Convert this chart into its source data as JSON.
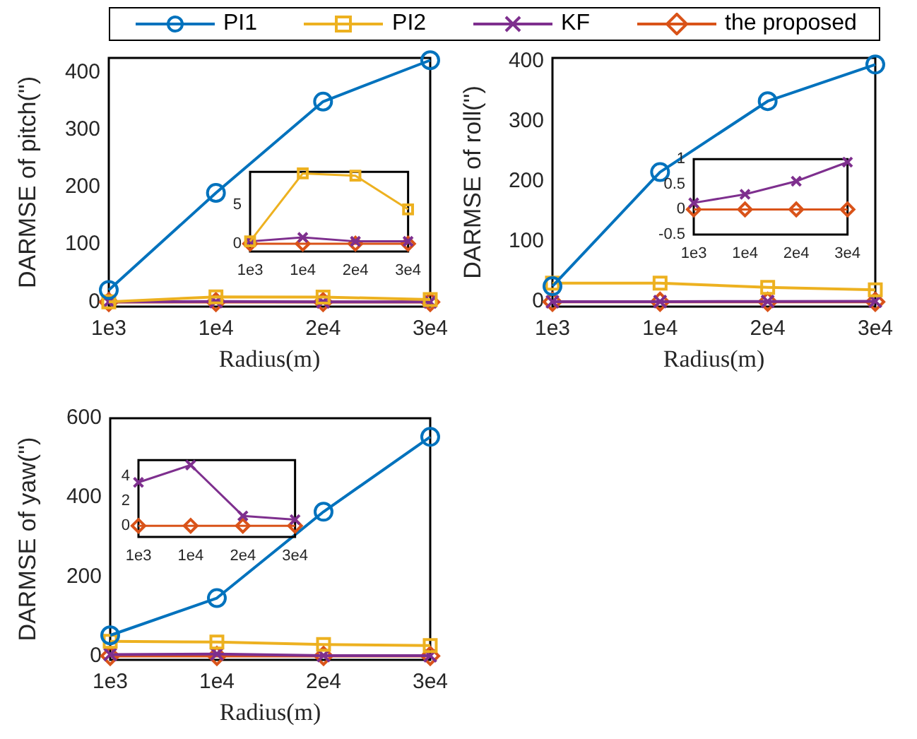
{
  "chart_data": [
    {
      "type": "line",
      "xlabel": "Radius(m)",
      "ylabel": "DARMSE of pitch('')",
      "categories": [
        "1e3",
        "1e4",
        "2e4",
        "3e4"
      ],
      "ylim": [
        -8,
        425
      ],
      "yticks": [
        0,
        100,
        200,
        300,
        400
      ],
      "legend": "top",
      "series": [
        {
          "name": "PI1",
          "color": "#0072bd",
          "marker": "circle",
          "values": [
            21,
            190,
            349,
            421
          ]
        },
        {
          "name": "PI2",
          "color": "#edb120",
          "marker": "square",
          "values": [
            0.3,
            9,
            8.7,
            4.4
          ]
        },
        {
          "name": "KF",
          "color": "#7e2f8e",
          "marker": "cross",
          "values": [
            0.3,
            0.8,
            0.3,
            0.3
          ]
        },
        {
          "name": "the proposed",
          "color": "#d95319",
          "marker": "diamond",
          "values": [
            0,
            0,
            0,
            0
          ]
        }
      ]
    },
    {
      "type": "line",
      "categories": [
        "1e3",
        "1e4",
        "2e4",
        "3e4"
      ],
      "ylim": [
        -1,
        9.2
      ],
      "yticks": [
        0,
        5
      ],
      "series": [
        {
          "color": "#edb120",
          "marker": "square",
          "values": [
            0.3,
            9,
            8.7,
            4.4
          ]
        },
        {
          "color": "#7e2f8e",
          "marker": "cross",
          "values": [
            0.3,
            0.8,
            0.3,
            0.3
          ]
        },
        {
          "color": "#d95319",
          "marker": "diamond",
          "values": [
            0,
            0,
            0,
            0
          ]
        }
      ]
    },
    {
      "type": "line",
      "xlabel": "Radius(m)",
      "ylabel": "DARMSE of roll('')",
      "categories": [
        "1e3",
        "1e4",
        "2e4",
        "3e4"
      ],
      "ylim": [
        -8,
        406
      ],
      "yticks": [
        0,
        100,
        200,
        300,
        400
      ],
      "series": [
        {
          "color": "#0072bd",
          "marker": "circle",
          "values": [
            26,
            216,
            334,
            395
          ]
        },
        {
          "color": "#edb120",
          "marker": "square",
          "values": [
            31,
            31,
            24,
            20
          ]
        },
        {
          "color": "#7e2f8e",
          "marker": "cross",
          "values": [
            0.13,
            0.3,
            0.56,
            0.94
          ]
        },
        {
          "color": "#d95319",
          "marker": "diamond",
          "values": [
            0,
            0,
            0,
            0
          ]
        }
      ]
    },
    {
      "type": "line",
      "categories": [
        "1e3",
        "1e4",
        "2e4",
        "3e4"
      ],
      "ylim": [
        -0.5,
        1
      ],
      "yticks": [
        -0.5,
        0,
        0.5,
        1
      ],
      "series": [
        {
          "color": "#7e2f8e",
          "marker": "cross",
          "values": [
            0.13,
            0.3,
            0.56,
            0.94
          ]
        },
        {
          "color": "#d95319",
          "marker": "diamond",
          "values": [
            0,
            0,
            0,
            0
          ]
        }
      ]
    },
    {
      "type": "line",
      "xlabel": "Radius(m)",
      "ylabel": "DARMSE of yaw('')",
      "categories": [
        "1e3",
        "1e4",
        "2e4",
        "3e4"
      ],
      "ylim": [
        -10,
        600
      ],
      "yticks": [
        0,
        200,
        400,
        600
      ],
      "series": [
        {
          "color": "#0072bd",
          "marker": "circle",
          "values": [
            52,
            146,
            364,
            553
          ]
        },
        {
          "color": "#edb120",
          "marker": "square",
          "values": [
            37,
            35,
            29,
            26
          ]
        },
        {
          "color": "#7e2f8e",
          "marker": "cross",
          "values": [
            3.5,
            4.9,
            0.8,
            0.5
          ]
        },
        {
          "color": "#d95319",
          "marker": "diamond",
          "values": [
            0,
            0,
            0,
            0
          ]
        }
      ]
    },
    {
      "type": "line",
      "categories": [
        "1e3",
        "1e4",
        "2e4",
        "3e4"
      ],
      "ylim": [
        -0.9,
        5.3
      ],
      "yticks": [
        0,
        2,
        4
      ],
      "series": [
        {
          "color": "#7e2f8e",
          "marker": "cross",
          "values": [
            3.5,
            4.9,
            0.8,
            0.5
          ]
        },
        {
          "color": "#d95319",
          "marker": "diamond",
          "values": [
            0,
            0,
            0,
            0
          ]
        }
      ]
    }
  ]
}
